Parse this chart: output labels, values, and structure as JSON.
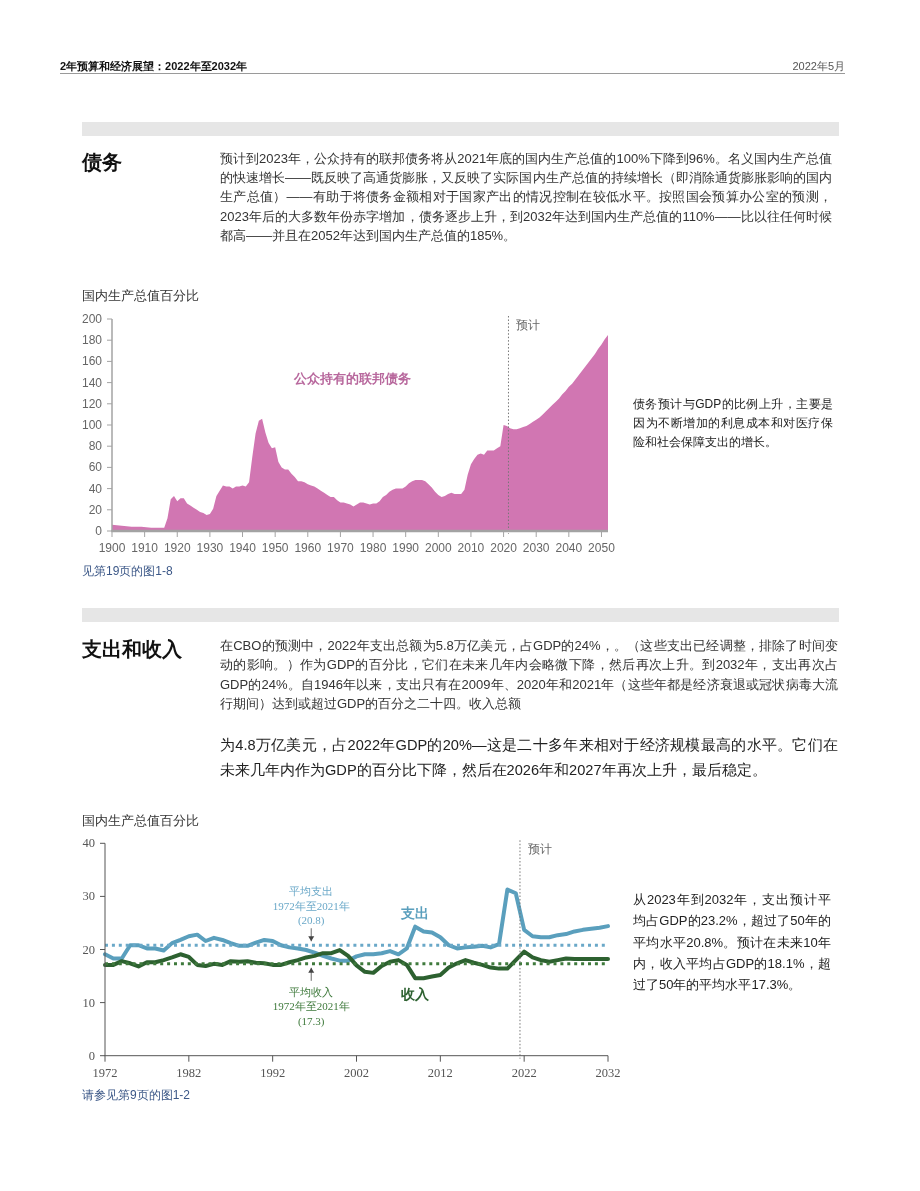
{
  "chart_data": [
    {
      "type": "area",
      "title": "债务",
      "subtitle": "预计到2023年，公众持有的联邦债务将从2021年底的国内生产总值的100%下降到96%。名义国内生产总值的快速增长——既反映了高通货膨胀，又反映了实际国内生产总值的持续增长（即消除通货膨胀影响的国内生产总值）——有助于将债务金额相对于国家产出的情况控制在较低水平。按照国会预算办公室的预测，2023年后的大多数年份赤字增加，债务逐步上升，到2032年达到国内生产总值的110%——比以往任何时候都高——并且在2052年达到国内生产总值的185%。",
      "ylabel": "国内生产总值百分比",
      "annotations": [
        "2年预算和经济展望：2022年至2032年",
        "2022年5月",
        "债务预计与GDP的比例上升，主要是因为不断增加的利息成本和对医疗保险和社会保障支出的增长。",
        "见第19页的图1-8"
      ],
      "x": [
        1900,
        1903,
        1906,
        1909,
        1912,
        1915,
        1916,
        1917,
        1918,
        1919,
        1920,
        1921,
        1922,
        1923,
        1924,
        1925,
        1926,
        1927,
        1928,
        1929,
        1930,
        1931,
        1932,
        1933,
        1934,
        1935,
        1936,
        1937,
        1938,
        1939,
        1940,
        1941,
        1942,
        1943,
        1944,
        1945,
        1946,
        1947,
        1948,
        1949,
        1950,
        1951,
        1952,
        1953,
        1954,
        1955,
        1956,
        1957,
        1958,
        1959,
        1960,
        1961,
        1962,
        1963,
        1964,
        1965,
        1966,
        1967,
        1968,
        1969,
        1970,
        1971,
        1972,
        1973,
        1974,
        1975,
        1976,
        1977,
        1978,
        1979,
        1980,
        1981,
        1982,
        1983,
        1984,
        1985,
        1986,
        1987,
        1988,
        1989,
        1990,
        1991,
        1992,
        1993,
        1994,
        1995,
        1996,
        1997,
        1998,
        1999,
        2000,
        2001,
        2002,
        2003,
        2004,
        2005,
        2006,
        2007,
        2008,
        2009,
        2010,
        2011,
        2012,
        2013,
        2014,
        2015,
        2016,
        2017,
        2018,
        2019,
        2020,
        2021,
        2022,
        2023,
        2024,
        2025,
        2026,
        2027,
        2028,
        2029,
        2030,
        2031,
        2032,
        2033,
        2034,
        2035,
        2036,
        2037,
        2038,
        2039,
        2040,
        2041,
        2042,
        2043,
        2044,
        2045,
        2046,
        2047,
        2048,
        2049,
        2050,
        2051,
        2052
      ],
      "series": [
        {
          "name": "公众持有的联邦债务",
          "color": "#d176b2",
          "values": [
            6,
            5,
            4,
            4,
            3,
            3,
            3,
            12,
            30,
            33,
            28,
            31,
            31,
            26,
            24,
            22,
            20,
            18,
            17,
            15,
            16,
            21,
            33,
            38,
            43,
            42,
            42,
            40,
            42,
            42,
            43,
            42,
            46,
            70,
            92,
            104,
            106,
            93,
            83,
            78,
            79,
            65,
            60,
            58,
            58,
            54,
            51,
            47,
            47,
            46,
            44,
            43,
            42,
            40,
            38,
            36,
            34,
            32,
            32,
            29,
            27,
            27,
            26,
            25,
            23,
            25,
            27,
            27,
            26,
            25,
            26,
            26,
            28,
            32,
            34,
            37,
            39,
            40,
            40,
            40,
            42,
            45,
            47,
            48,
            48,
            48,
            47,
            44,
            41,
            37,
            34,
            32,
            33,
            35,
            36,
            35,
            35,
            35,
            39,
            53,
            63,
            68,
            72,
            73,
            72,
            76,
            76,
            76,
            78,
            80,
            100,
            99,
            97,
            96,
            96,
            97,
            98,
            99,
            101,
            103,
            105,
            107,
            110,
            113,
            116,
            119,
            122,
            125,
            129,
            132,
            136,
            139,
            143,
            147,
            151,
            155,
            159,
            163,
            167,
            172,
            176,
            181,
            185
          ]
        }
      ],
      "xlim": [
        1900,
        2052
      ],
      "xticks": [
        1900,
        1910,
        1920,
        1930,
        1940,
        1950,
        1960,
        1970,
        1980,
        1990,
        2000,
        2010,
        2020,
        2030,
        2040,
        2050
      ],
      "ylim": [
        0,
        200
      ],
      "yticks": [
        0,
        20,
        40,
        60,
        80,
        100,
        120,
        140,
        160,
        180,
        200
      ],
      "ref_lines": [
        {
          "axis": "x",
          "value": 2021.5,
          "label": "预计",
          "color": "#777777",
          "line_style": "dotted"
        }
      ]
    },
    {
      "type": "line",
      "title": "支出和收入",
      "subtitle": "在CBO的预测中，2022年支出总额为5.8万亿美元，占GDP的24%，。（这些支出已经调整，排除了时间变动的影响。）作为GDP的百分比，它们在未来几年内会略微下降，然后再次上升。到2032年，支出再次占GDP的24%。自1946年以来，支出只有在2009年、2020年和2021年（这些年都是经济衰退或冠状病毒大流行期间）达到或超过GDP的百分之二十四。收入总额",
      "ylabel": "国内生产总值百分比",
      "annotations": [
        "为4.8万亿美元，占2022年GDP的20%—这是二十多年来相对于经济规模最高的水平。它们在未来几年内作为GDP的百分比下降，然后在2026年和2027年再次上升，最后稳定。",
        "从2023年到2032年，支出预计平均占GDP的23.2%，超过了50年的平均水平20.8%。预计在未来10年内，收入平均占GDP的18.1%，超过了50年的平均水平17.3%。",
        "请参见第9页的图1-2"
      ],
      "x": [
        1972,
        1973,
        1974,
        1975,
        1976,
        1977,
        1978,
        1979,
        1980,
        1981,
        1982,
        1983,
        1984,
        1985,
        1986,
        1987,
        1988,
        1989,
        1990,
        1991,
        1992,
        1993,
        1994,
        1995,
        1996,
        1997,
        1998,
        1999,
        2000,
        2001,
        2002,
        2003,
        2004,
        2005,
        2006,
        2007,
        2008,
        2009,
        2010,
        2011,
        2012,
        2013,
        2014,
        2015,
        2016,
        2017,
        2018,
        2019,
        2020,
        2021,
        2022,
        2023,
        2024,
        2025,
        2026,
        2027,
        2028,
        2029,
        2030,
        2031,
        2032
      ],
      "series": [
        {
          "name": "支出",
          "color": "#5a9fbd",
          "values": [
            19.1,
            18.3,
            18.3,
            20.8,
            20.8,
            20.2,
            20.2,
            19.8,
            21.2,
            21.8,
            22.5,
            22.8,
            21.6,
            22.2,
            21.8,
            21.2,
            20.7,
            20.7,
            21.3,
            21.8,
            21.6,
            20.8,
            20.4,
            20.2,
            19.9,
            19.4,
            18.8,
            18.3,
            17.9,
            17.9,
            18.7,
            19.1,
            19.1,
            19.3,
            19.7,
            19.1,
            20.2,
            24.3,
            23.4,
            23.2,
            22.3,
            20.8,
            20.2,
            20.4,
            20.5,
            20.7,
            20.4,
            21.0,
            31.3,
            30.6,
            23.7,
            22.5,
            22.3,
            22.3,
            22.7,
            22.9,
            23.4,
            23.7,
            23.9,
            24.1,
            24.4
          ]
        },
        {
          "name": "收入",
          "color": "#2d6130",
          "values": [
            17.1,
            17.1,
            17.8,
            17.4,
            16.8,
            17.6,
            17.6,
            18.0,
            18.5,
            19.1,
            18.6,
            17.1,
            16.9,
            17.3,
            17.1,
            17.8,
            17.7,
            17.8,
            17.5,
            17.4,
            17.1,
            17.1,
            17.6,
            18.0,
            18.5,
            18.8,
            19.3,
            19.3,
            19.9,
            18.8,
            17.0,
            15.8,
            15.6,
            16.9,
            17.7,
            18.0,
            17.1,
            14.6,
            14.6,
            14.9,
            15.2,
            16.6,
            17.4,
            18.0,
            17.5,
            17.1,
            16.6,
            16.4,
            16.4,
            18.0,
            19.6,
            18.5,
            18.0,
            17.7,
            18.0,
            18.3,
            18.2,
            18.2,
            18.2,
            18.2,
            18.2
          ]
        }
      ],
      "xlim": [
        1972,
        2032
      ],
      "xticks": [
        1972,
        1982,
        1992,
        2002,
        2012,
        2022,
        2032
      ],
      "ylim": [
        0,
        40
      ],
      "yticks": [
        0,
        10,
        20,
        30,
        40
      ],
      "line_style": "solid",
      "ref_lines": [
        {
          "axis": "y",
          "value": 20.8,
          "label": "平均支出\n1972年至2021年\n(20.8)",
          "color": "#6aa8c8",
          "line_style": "dotted"
        },
        {
          "axis": "y",
          "value": 17.3,
          "label": "平均收入\n1972年至2021年\n(17.3)",
          "color": "#3f7a3c",
          "line_style": "dotted"
        },
        {
          "axis": "x",
          "value": 2021.5,
          "label": "预计",
          "color": "#777777",
          "line_style": "dotted"
        }
      ]
    }
  ]
}
